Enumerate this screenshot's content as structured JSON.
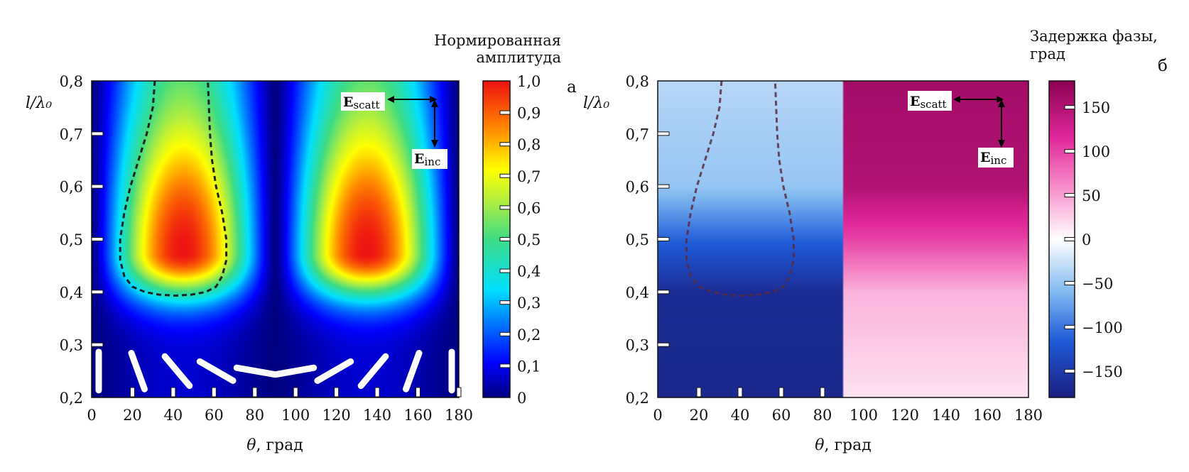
{
  "chart_data": [
    {
      "panel_label": "а",
      "type": "heatmap",
      "quantity": "amplitude",
      "xlabel_symbol": "θ",
      "xlabel_unit": ", град",
      "ylabel": "l/λ₀",
      "xlim": [
        0,
        180
      ],
      "ylim": [
        0.2,
        0.8
      ],
      "x_ticks": [
        "0",
        "20",
        "40",
        "60",
        "80",
        "100",
        "120",
        "140",
        "160",
        "180"
      ],
      "y_ticks": [
        "0,2",
        "0,3",
        "0,4",
        "0,5",
        "0,6",
        "0,7",
        "0,8"
      ],
      "colorbar": {
        "title_lines": [
          "Нормированная",
          "амплитуда"
        ],
        "range": [
          0,
          1
        ],
        "colormap": "jet",
        "ticks": [
          "0",
          "0,1",
          "0,2",
          "0,3",
          "0,4",
          "0,5",
          "0,6",
          "0,7",
          "0,8",
          "0,9",
          "1,0"
        ]
      },
      "field": {
        "description_x": "amplitude ~ |sin(2θ)|",
        "peaks": [
          {
            "theta": 45,
            "l": 0.475,
            "value": 1.0
          },
          {
            "theta": 135,
            "l": 0.475,
            "value": 1.0
          }
        ],
        "minimum_columns_theta": [
          0,
          90,
          180
        ]
      },
      "contour_dashed": {
        "theta": [
          31,
          30,
          27,
          23,
          19,
          16,
          14,
          14,
          16,
          20,
          26,
          33,
          41,
          49,
          56,
          61,
          64,
          66,
          66,
          64,
          61,
          59,
          58,
          57
        ],
        "l": [
          0.8,
          0.75,
          0.7,
          0.65,
          0.6,
          0.55,
          0.5,
          0.46,
          0.43,
          0.41,
          0.4,
          0.395,
          0.393,
          0.395,
          0.4,
          0.41,
          0.43,
          0.46,
          0.5,
          0.55,
          0.6,
          0.65,
          0.7,
          0.8
        ]
      },
      "antenna_orientations_deg": [
        0,
        20,
        40,
        60,
        80,
        100,
        120,
        140,
        160,
        180
      ],
      "polarization_labels": {
        "scatt": "scatt",
        "inc": "inc",
        "E": "E"
      }
    },
    {
      "panel_label": "б",
      "type": "heatmap",
      "quantity": "phase",
      "xlabel_symbol": "θ",
      "xlabel_unit": ", град",
      "ylabel": "l/λ₀",
      "xlim": [
        0,
        180
      ],
      "ylim": [
        0.2,
        0.8
      ],
      "x_ticks": [
        "0",
        "20",
        "40",
        "60",
        "80",
        "100",
        "120",
        "140",
        "160",
        "180"
      ],
      "y_ticks": [
        "0,2",
        "0,3",
        "0,4",
        "0,5",
        "0,6",
        "0,7",
        "0,8"
      ],
      "colorbar": {
        "title_lines": [
          "Задержка фазы,",
          "град"
        ],
        "range": [
          -180,
          180
        ],
        "colormap": "blue-white-magenta",
        "tick_values": [
          -150,
          -100,
          -50,
          0,
          50,
          100,
          150
        ],
        "ticks": [
          "−150",
          "−100",
          "−50",
          "0",
          "50",
          "100",
          "150"
        ]
      },
      "field": {
        "left_region_theta": [
          0,
          90
        ],
        "right_region_theta": [
          90,
          180
        ],
        "left_phase_profile": {
          "l": [
            0.2,
            0.4,
            0.5,
            0.6,
            0.8
          ],
          "phase": [
            -170,
            -165,
            -110,
            -50,
            -35
          ]
        },
        "right_phase_profile": {
          "l": [
            0.2,
            0.4,
            0.5,
            0.6,
            0.8
          ],
          "phase": [
            15,
            40,
            100,
            150,
            160
          ]
        }
      },
      "contour_dashed": {
        "theta": [
          31,
          30,
          27,
          23,
          19,
          16,
          14,
          14,
          16,
          20,
          26,
          33,
          41,
          49,
          56,
          61,
          64,
          66,
          66,
          64,
          61,
          59,
          58,
          57
        ],
        "l": [
          0.8,
          0.75,
          0.7,
          0.65,
          0.6,
          0.55,
          0.5,
          0.46,
          0.43,
          0.41,
          0.4,
          0.395,
          0.393,
          0.395,
          0.4,
          0.41,
          0.43,
          0.46,
          0.5,
          0.55,
          0.6,
          0.65,
          0.7,
          0.8
        ]
      },
      "polarization_labels": {
        "scatt": "scatt",
        "inc": "inc",
        "E": "E"
      }
    }
  ]
}
